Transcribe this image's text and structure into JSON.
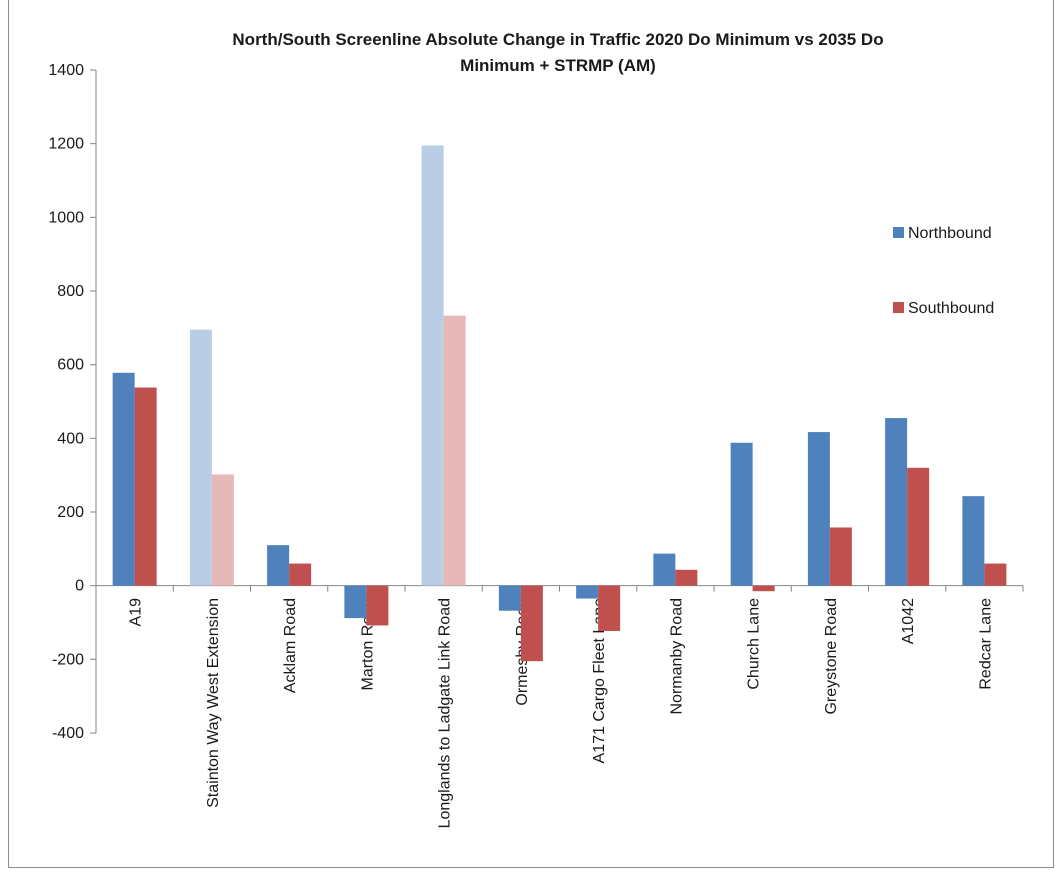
{
  "chart_data": {
    "type": "bar",
    "title_lines": [
      "North/South Screenline Absolute Change in Traffic 2020 Do Minimum vs 2035 Do",
      "Minimum + STRMP (AM)"
    ],
    "xlabel": "",
    "ylabel": "",
    "ylim": [
      -400,
      1400
    ],
    "yticks": [
      -400,
      -200,
      0,
      200,
      400,
      600,
      800,
      1000,
      1200,
      1400
    ],
    "yticks_labels": [
      "-400",
      "-200",
      "0",
      "200",
      "400",
      "600",
      "800",
      "1000",
      "1200",
      "1400"
    ],
    "grid": false,
    "legend_position": "right",
    "categories": [
      "A19",
      "Stainton Way West Extension",
      "Acklam Road",
      "Marton Road",
      "Longlands to Ladgate Link Road",
      "Ormesby Road",
      "A171 Cargo Fleet Lane",
      "Normanby Road",
      "Church Lane",
      "Greystone Road",
      "A1042",
      "Redcar Lane"
    ],
    "faded_categories": [
      1,
      4
    ],
    "series": [
      {
        "name": "Northbound",
        "color": "#4f81bd",
        "faded_color": "#b9cde5",
        "values": [
          578,
          695,
          110,
          -88,
          1195,
          -68,
          -35,
          87,
          388,
          417,
          455,
          243
        ]
      },
      {
        "name": "Southbound",
        "color": "#c0504d",
        "faded_color": "#e6b9b8",
        "values": [
          538,
          302,
          60,
          -108,
          733,
          -205,
          -123,
          43,
          -15,
          158,
          320,
          60
        ]
      }
    ]
  }
}
